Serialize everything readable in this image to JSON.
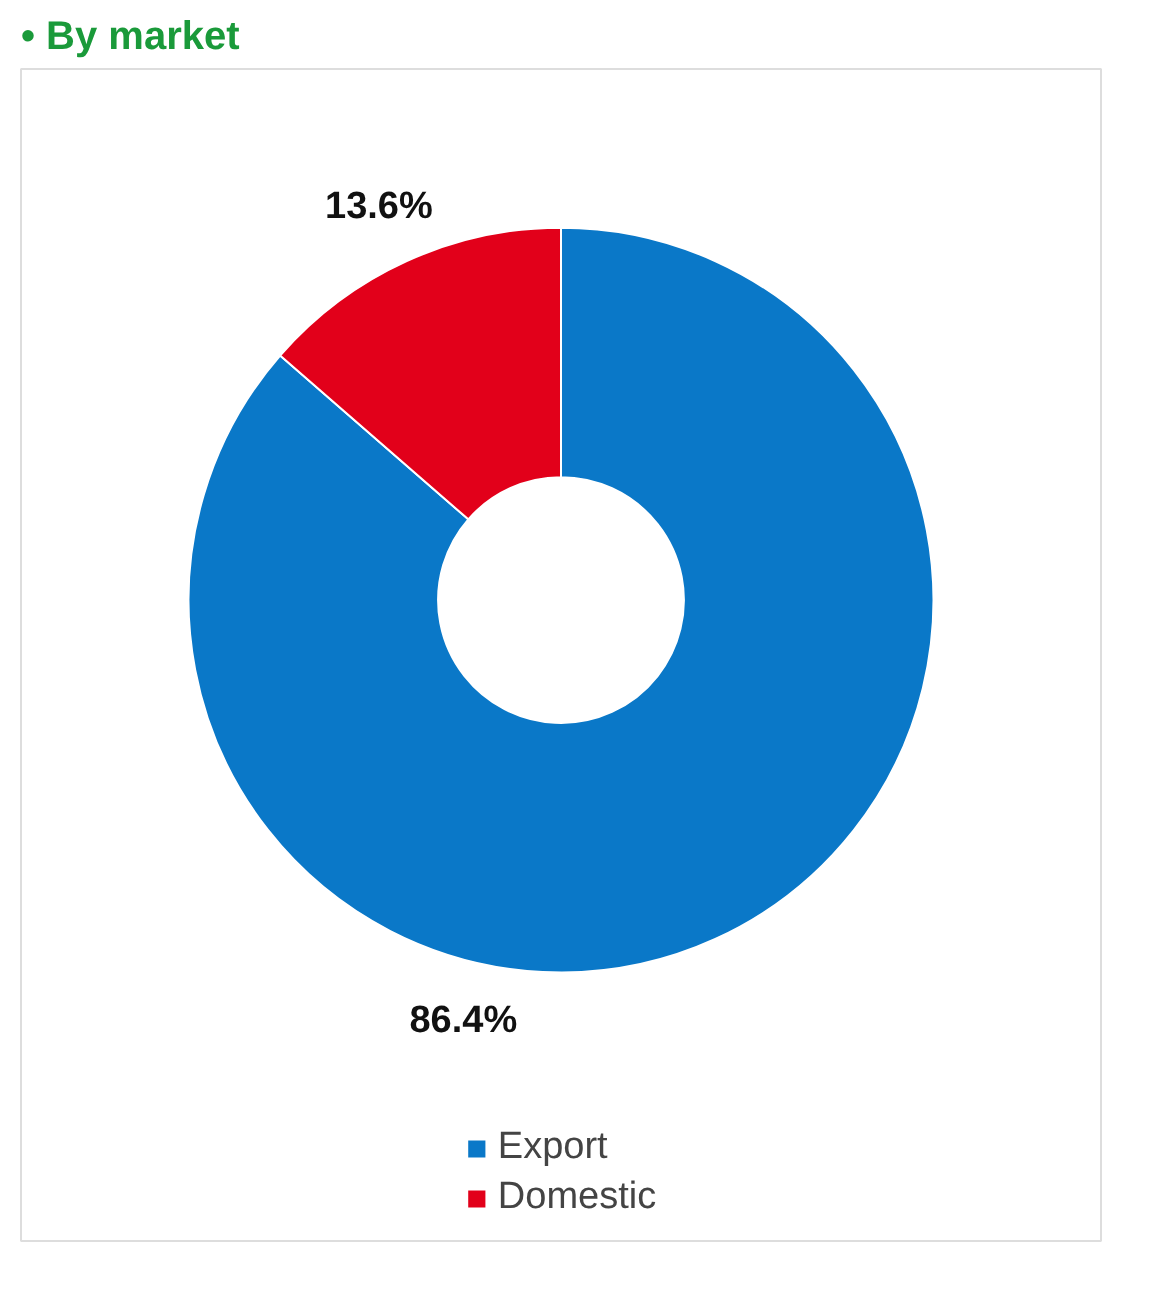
{
  "chart_data": {
    "type": "donut",
    "title": "• By market",
    "categories": [
      "Export",
      "Domestic"
    ],
    "values": [
      86.4,
      13.6
    ],
    "colors": [
      "#0a78c8",
      "#e2001a"
    ],
    "value_labels": [
      "86.4%",
      "13.6%"
    ],
    "legend": "bottom"
  }
}
